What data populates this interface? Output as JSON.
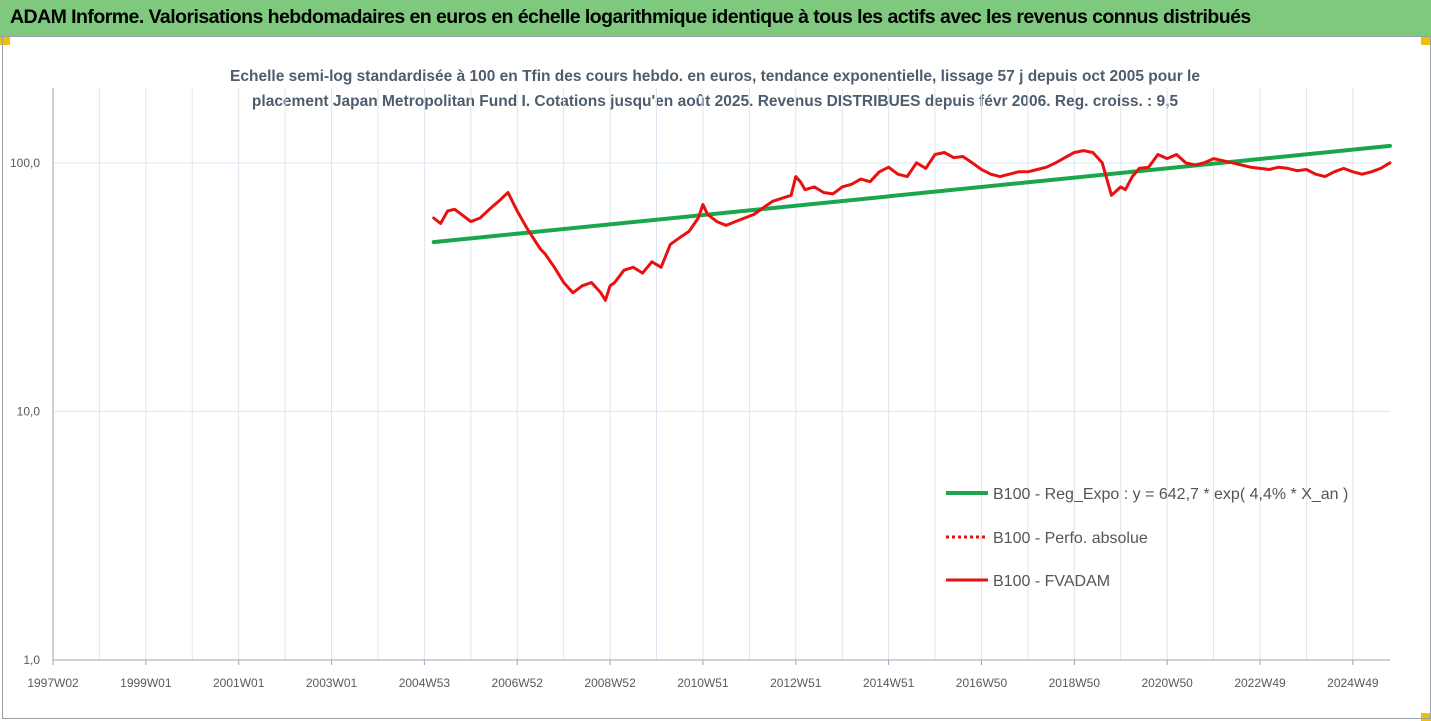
{
  "header": {
    "title": "ADAM Informe. Valorisations hebdomadaires en euros en échelle logarithmique identique à tous les actifs avec les revenus connus distribués"
  },
  "colors": {
    "header_bg": "#7fc97f",
    "regression": "#1aa64a",
    "fvadam": "#e8110f",
    "gridline": "#dce6f0"
  },
  "chart_data": {
    "type": "line",
    "title": "",
    "subtitle_lines": [
      "Echelle semi-log standardisée à 100 en Tfin des cours hebdo. en euros, tendance exponentielle, lissage 57 j depuis oct 2005 pour le",
      "placement Japan Metropolitan Fund I. Cotations jusqu'en août 2025. Revenus DISTRIBUES depuis févr 2006. Reg. croiss. : 9,5"
    ],
    "xlabel": "",
    "ylabel": "",
    "y_scale": "log",
    "ylim": [
      1,
      200
    ],
    "y_ticks": [
      {
        "value": 1,
        "label": "1,0"
      },
      {
        "value": 10,
        "label": "10,0"
      },
      {
        "value": 100,
        "label": "100,0"
      }
    ],
    "xlim": [
      1997.0,
      2025.8
    ],
    "x_ticks": [
      {
        "value": 1997.0,
        "label": "1997W02"
      },
      {
        "value": 1999.0,
        "label": "1999W01"
      },
      {
        "value": 2001.0,
        "label": "2001W01"
      },
      {
        "value": 2003.0,
        "label": "2003W01"
      },
      {
        "value": 2005.0,
        "label": "2004W53"
      },
      {
        "value": 2007.0,
        "label": "2006W52"
      },
      {
        "value": 2009.0,
        "label": "2008W52"
      },
      {
        "value": 2011.0,
        "label": "2010W51"
      },
      {
        "value": 2013.0,
        "label": "2012W51"
      },
      {
        "value": 2015.0,
        "label": "2014W51"
      },
      {
        "value": 2017.0,
        "label": "2016W50"
      },
      {
        "value": 2019.0,
        "label": "2018W50"
      },
      {
        "value": 2021.0,
        "label": "2020W50"
      },
      {
        "value": 2023.0,
        "label": "2022W49"
      },
      {
        "value": 2025.0,
        "label": "2024W49"
      }
    ],
    "grid": true,
    "legend_position": "bottom-right",
    "series": [
      {
        "name": "B100 - Reg_Expo : y = 642,7 * exp( 4,4% *  X_an )",
        "color": "#1aa64a",
        "style": "solid",
        "x": [
          2005.2,
          2025.8
        ],
        "y": [
          48,
          117
        ]
      },
      {
        "name": "B100 - Perfo. absolue",
        "color": "#e8110f",
        "style": "dotted",
        "x": [],
        "y": []
      },
      {
        "name": "B100 - FVADAM",
        "color": "#e8110f",
        "style": "solid",
        "x": [
          2005.2,
          2005.35,
          2005.5,
          2005.65,
          2005.8,
          2006.0,
          2006.2,
          2006.4,
          2006.6,
          2006.8,
          2007.0,
          2007.2,
          2007.4,
          2007.5,
          2007.6,
          2007.8,
          2008.0,
          2008.2,
          2008.4,
          2008.6,
          2008.8,
          2008.9,
          2009.0,
          2009.1,
          2009.3,
          2009.5,
          2009.7,
          2009.9,
          2010.1,
          2010.3,
          2010.5,
          2010.7,
          2010.9,
          2011.0,
          2011.1,
          2011.3,
          2011.5,
          2011.7,
          2011.9,
          2012.1,
          2012.3,
          2012.5,
          2012.7,
          2012.9,
          2013.0,
          2013.1,
          2013.2,
          2013.4,
          2013.6,
          2013.8,
          2014.0,
          2014.2,
          2014.4,
          2014.6,
          2014.8,
          2015.0,
          2015.2,
          2015.4,
          2015.6,
          2015.8,
          2016.0,
          2016.2,
          2016.4,
          2016.6,
          2016.8,
          2017.0,
          2017.2,
          2017.4,
          2017.6,
          2017.8,
          2018.0,
          2018.2,
          2018.4,
          2018.6,
          2018.8,
          2019.0,
          2019.2,
          2019.4,
          2019.6,
          2019.8,
          2020.0,
          2020.1,
          2020.25,
          2020.4,
          2020.6,
          2020.8,
          2021.0,
          2021.2,
          2021.4,
          2021.6,
          2021.8,
          2022.0,
          2022.2,
          2022.4,
          2022.6,
          2022.8,
          2023.0,
          2023.2,
          2023.4,
          2023.6,
          2023.8,
          2024.0,
          2024.2,
          2024.4,
          2024.6,
          2024.8,
          2025.0,
          2025.2,
          2025.4,
          2025.6,
          2025.8
        ],
        "y": [
          60,
          57,
          64,
          65,
          62,
          58,
          60,
          65,
          70,
          76,
          64,
          55,
          48,
          45,
          43,
          38,
          33,
          30,
          32,
          33,
          30,
          28,
          32,
          33,
          37,
          38,
          36,
          40,
          38,
          47,
          50,
          53,
          60,
          68,
          62,
          58,
          56,
          58,
          60,
          62,
          66,
          70,
          72,
          74,
          88,
          84,
          78,
          80,
          76,
          75,
          80,
          82,
          86,
          84,
          92,
          96,
          90,
          88,
          100,
          95,
          108,
          110,
          105,
          106,
          100,
          94,
          90,
          88,
          90,
          92,
          92,
          94,
          96,
          100,
          105,
          110,
          112,
          110,
          100,
          74,
          80,
          78,
          88,
          95,
          96,
          108,
          104,
          108,
          100,
          98,
          100,
          104,
          102,
          100,
          98,
          96,
          95,
          94,
          96,
          95,
          93,
          94,
          90,
          88,
          92,
          95,
          92,
          90,
          92,
          95,
          100
        ]
      }
    ]
  }
}
